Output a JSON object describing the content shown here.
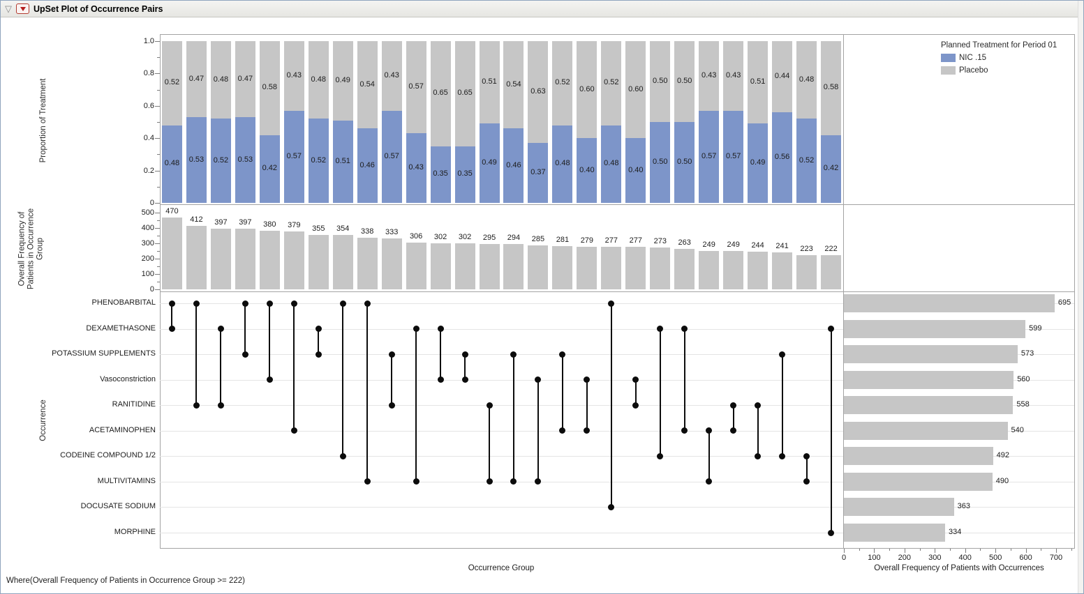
{
  "window": {
    "title": "UpSet Plot of Occurrence Pairs"
  },
  "legend": {
    "title": "Planned Treatment for Period 01",
    "items": [
      {
        "label": "NIC .15",
        "color": "#7d95c9"
      },
      {
        "label": "Placebo",
        "color": "#c6c6c6"
      }
    ]
  },
  "footer": {
    "where_clause": "Where(Overall Frequency of Patients in Occurrence Group >= 222)",
    "x_axis_title_matrix": "Occurrence Group",
    "x_axis_title_right": "Overall Frequency of Patients with Occurrences"
  },
  "chart_data": [
    {
      "type": "bar",
      "stacked": true,
      "ylabel": "Proportion of Treatment",
      "ylim": [
        0,
        1
      ],
      "yticks": [
        1.0,
        0.8,
        0.6,
        0.4,
        0.2,
        0
      ],
      "ytick_labels": [
        "1.0",
        "0.8",
        "0.6",
        "0.4",
        "0.2",
        "0"
      ],
      "series": [
        {
          "name": "NIC .15",
          "color": "#7d95c9",
          "values": [
            0.48,
            0.53,
            0.52,
            0.53,
            0.42,
            0.57,
            0.52,
            0.51,
            0.46,
            0.57,
            0.43,
            0.35,
            0.35,
            0.49,
            0.46,
            0.37,
            0.48,
            0.4,
            0.48,
            0.4,
            0.5,
            0.5,
            0.57,
            0.57,
            0.49,
            0.56,
            0.52,
            0.42
          ]
        },
        {
          "name": "Placebo",
          "color": "#c6c6c6",
          "values": [
            0.52,
            0.47,
            0.48,
            0.47,
            0.58,
            0.43,
            0.48,
            0.49,
            0.54,
            0.43,
            0.57,
            0.65,
            0.65,
            0.51,
            0.54,
            0.63,
            0.52,
            0.6,
            0.52,
            0.6,
            0.5,
            0.5,
            0.43,
            0.43,
            0.51,
            0.44,
            0.48,
            0.58
          ]
        }
      ]
    },
    {
      "type": "bar",
      "ylabel": "Overall Frequency of Patients in Occurrence Group",
      "ylim": [
        0,
        500
      ],
      "yticks": [
        500,
        400,
        300,
        200,
        100,
        0
      ],
      "ytick_labels": [
        "500",
        "400",
        "300",
        "200",
        "100",
        "0"
      ],
      "color": "#c6c6c6",
      "values": [
        470,
        412,
        397,
        397,
        380,
        379,
        355,
        354,
        338,
        333,
        306,
        302,
        302,
        295,
        294,
        285,
        281,
        279,
        277,
        277,
        273,
        263,
        249,
        249,
        244,
        241,
        223,
        222
      ]
    },
    {
      "type": "upset-matrix",
      "ylabel": "Occurrence",
      "xlabel": "Occurrence Group",
      "rows": [
        "PHENOBARBITAL",
        "DEXAMETHASONE",
        "POTASSIUM SUPPLEMENTS",
        "Vasoconstriction",
        "RANITIDINE",
        "ACETAMINOPHEN",
        "CODEINE COMPOUND 1/2",
        "MULTIVITAMINS",
        "DOCUSATE SODIUM",
        "MORPHINE"
      ],
      "column_pairs": [
        [
          0,
          1
        ],
        [
          0,
          4
        ],
        [
          1,
          4
        ],
        [
          0,
          2
        ],
        [
          0,
          3
        ],
        [
          0,
          5
        ],
        [
          1,
          2
        ],
        [
          0,
          6
        ],
        [
          0,
          7
        ],
        [
          2,
          4
        ],
        [
          1,
          7
        ],
        [
          1,
          3
        ],
        [
          2,
          3
        ],
        [
          4,
          7
        ],
        [
          2,
          7
        ],
        [
          3,
          7
        ],
        [
          2,
          5
        ],
        [
          3,
          5
        ],
        [
          0,
          8
        ],
        [
          3,
          4
        ],
        [
          1,
          6
        ],
        [
          1,
          5
        ],
        [
          5,
          7
        ],
        [
          4,
          5
        ],
        [
          4,
          6
        ],
        [
          2,
          6
        ],
        [
          6,
          7
        ],
        [
          1,
          9
        ]
      ]
    },
    {
      "type": "bar",
      "orientation": "horizontal",
      "xlabel": "Overall Frequency of Patients with Occurrences",
      "xlim": [
        0,
        760
      ],
      "xticks": [
        0,
        100,
        200,
        300,
        400,
        500,
        600,
        700
      ],
      "xtick_labels": [
        "0",
        "100",
        "200",
        "300",
        "400",
        "500",
        "600",
        "700"
      ],
      "color": "#c6c6c6",
      "categories": [
        "PHENOBARBITAL",
        "DEXAMETHASONE",
        "POTASSIUM SUPPLEMENTS",
        "Vasoconstriction",
        "RANITIDINE",
        "ACETAMINOPHEN",
        "CODEINE COMPOUND 1/2",
        "MULTIVITAMINS",
        "DOCUSATE SODIUM",
        "MORPHINE"
      ],
      "values": [
        695,
        599,
        573,
        560,
        558,
        540,
        492,
        490,
        363,
        334
      ]
    }
  ]
}
